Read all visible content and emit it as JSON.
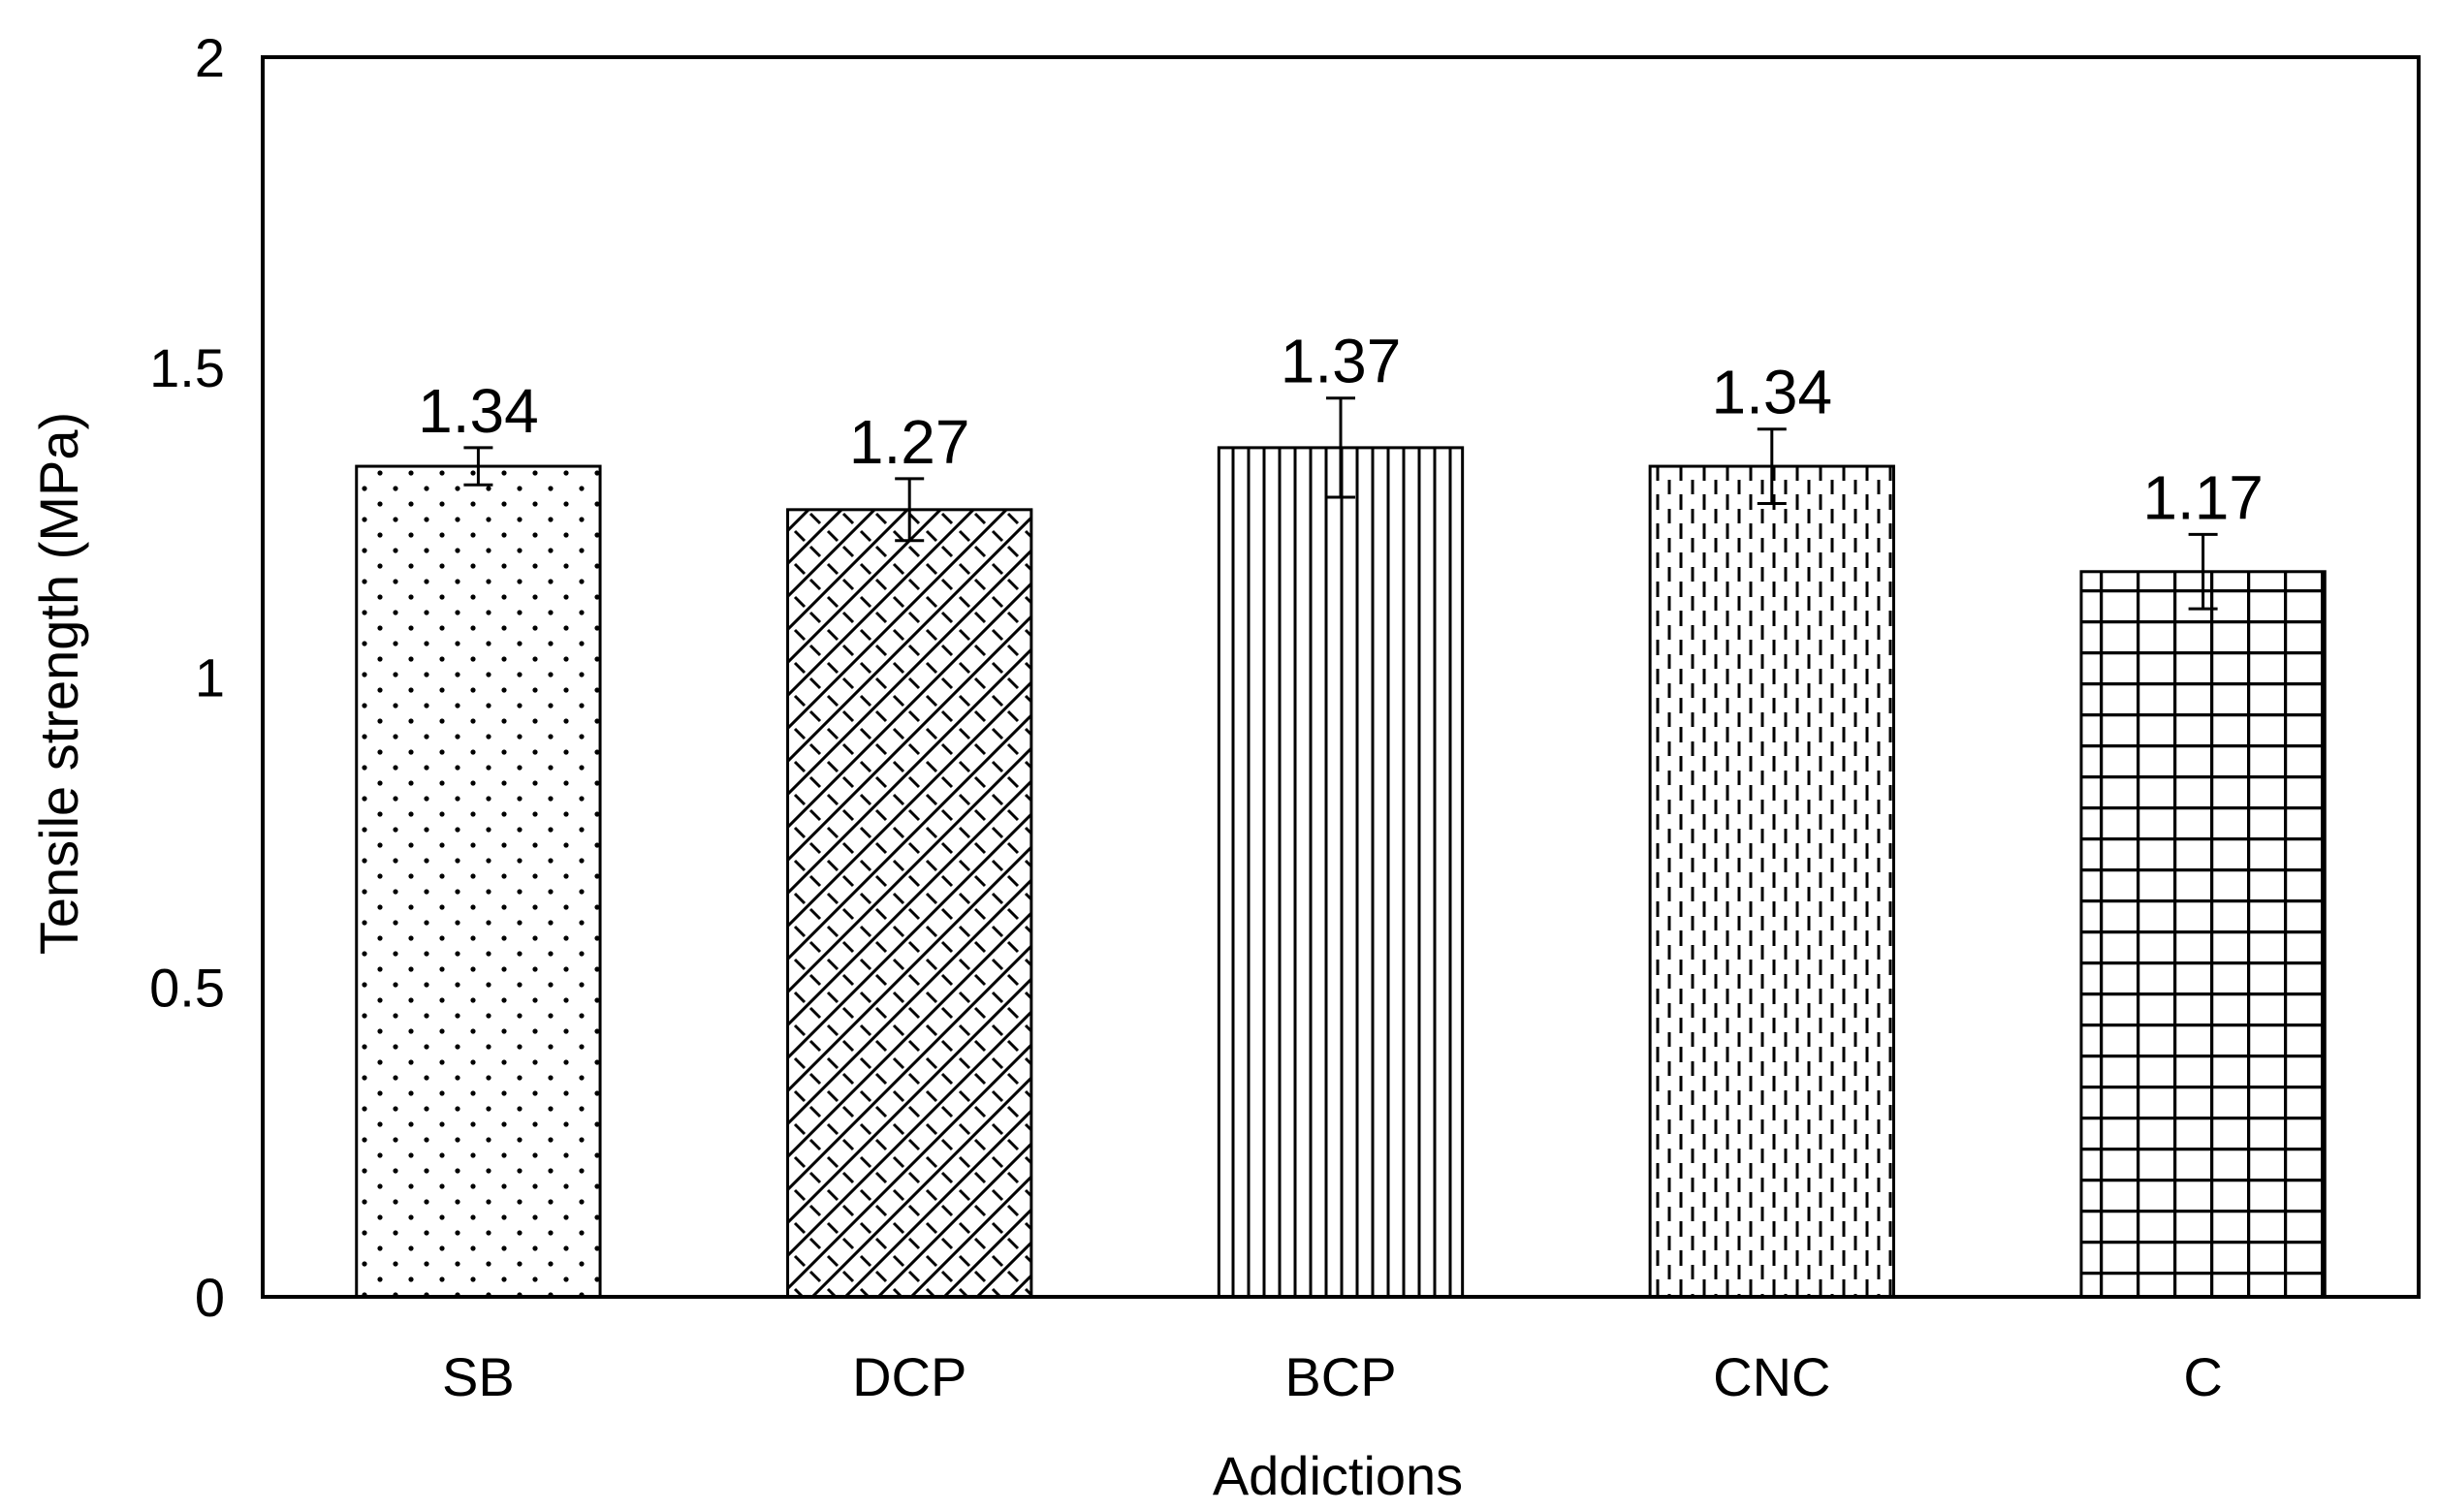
{
  "chart_data": {
    "type": "bar",
    "title": "",
    "xlabel": "Addictions",
    "ylabel": "Tensile strength (MPa)",
    "ylim": [
      0,
      2
    ],
    "yticks": [
      "0",
      "0.5",
      "1",
      "1.5",
      "2"
    ],
    "categories": [
      "SB",
      "DCP",
      "BCP",
      "CNC",
      "C"
    ],
    "values": [
      1.34,
      1.27,
      1.37,
      1.34,
      1.17
    ],
    "value_labels": [
      "1.34",
      "1.27",
      "1.37",
      "1.34",
      "1.17"
    ],
    "errors": [
      0.03,
      0.05,
      0.08,
      0.06,
      0.06
    ],
    "patterns": [
      "dots",
      "diagonal-cross",
      "vertical-lines",
      "vertical-dashes",
      "grid"
    ],
    "grid": false,
    "legend": "none"
  }
}
